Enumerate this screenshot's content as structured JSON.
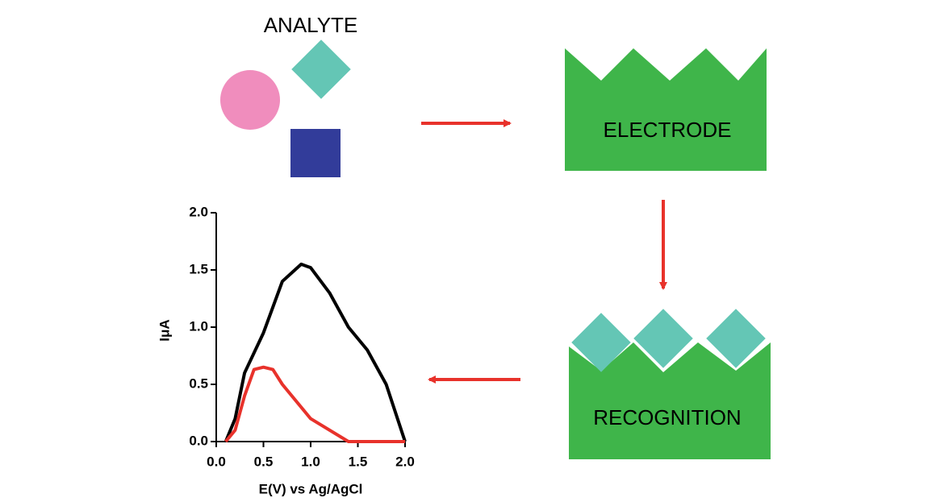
{
  "labels": {
    "analyte": "ANALYTE",
    "electrode": "ELECTRODE",
    "recognition": "RECOGNITION"
  },
  "chart_data": {
    "type": "line",
    "x_label": "E(V) vs Ag/AgCl",
    "y_label": "IμA",
    "xlim": [
      0,
      2
    ],
    "ylim": [
      0,
      2
    ],
    "xticks": [
      {
        "value": 0,
        "label": "0.0"
      },
      0.5,
      {
        "value": 1,
        "label": "1.0"
      },
      1.5,
      {
        "value": 2,
        "label": "2.0"
      }
    ],
    "yticks": [
      {
        "value": 0,
        "label": "0.0"
      },
      0.5,
      {
        "value": 1,
        "label": "1.0"
      },
      1.5,
      {
        "value": 2,
        "label": "2.0"
      }
    ],
    "series": [
      {
        "color": "#000000",
        "x": [
          0.1,
          0.2,
          0.3,
          0.5,
          0.7,
          0.9,
          1.0,
          1.2,
          1.4,
          1.6,
          1.8,
          2.0
        ],
        "values": [
          0,
          0.2,
          0.6,
          0.95,
          1.4,
          1.55,
          1.52,
          1.3,
          1.0,
          0.8,
          0.5,
          0
        ]
      },
      {
        "color": "#e8322b",
        "x": [
          0.1,
          0.2,
          0.3,
          0.4,
          0.5,
          0.6,
          0.7,
          1.0,
          1.4,
          2.0
        ],
        "values": [
          0,
          0.1,
          0.4,
          0.63,
          0.65,
          0.63,
          0.5,
          0.2,
          0,
          0
        ]
      }
    ]
  }
}
